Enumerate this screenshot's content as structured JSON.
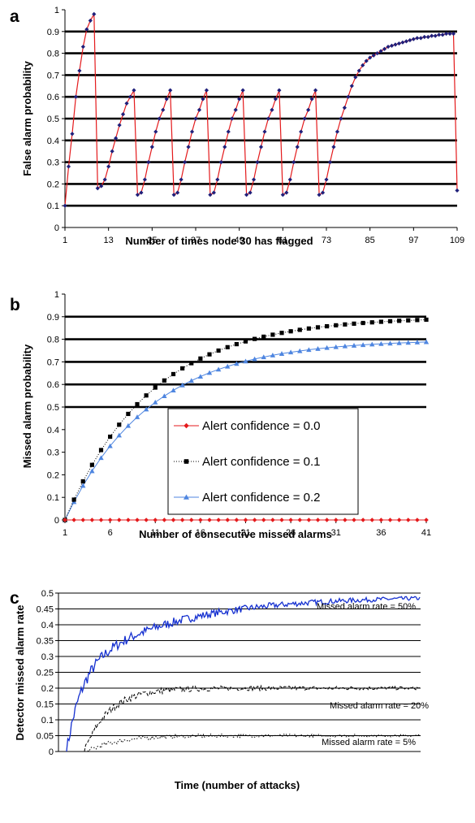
{
  "chart_data": [
    {
      "panel": "a",
      "type": "line",
      "ylabel": "False alarm probability",
      "xlabel": "Number of times node 30 has flagged",
      "ylim": [
        0,
        1
      ],
      "yticks": [
        "0",
        "0.1",
        "0.2",
        "0.3",
        "0.4",
        "0.5",
        "0.6",
        "0.7",
        "0.8",
        "0.9",
        "1"
      ],
      "xticks": [
        "1",
        "13",
        "25",
        "37",
        "49",
        "61",
        "73",
        "85",
        "97",
        "109"
      ],
      "xlim": [
        1,
        109
      ],
      "grid": "horizontal",
      "colors": {
        "line": "#e41a1c",
        "marker": "#1f1f7a"
      },
      "series": [
        {
          "x": [
            1,
            2,
            3,
            4,
            5,
            6,
            7,
            8,
            9,
            10,
            11,
            12,
            13,
            14,
            15,
            16,
            17,
            18,
            19,
            20,
            21,
            22,
            23,
            24,
            25,
            26,
            27,
            28,
            29,
            30,
            31,
            32,
            33,
            34,
            35,
            36,
            37,
            38,
            39,
            40,
            41,
            42,
            43,
            44,
            45,
            46,
            47,
            48,
            49,
            50,
            51,
            52,
            53,
            54,
            55,
            56,
            57,
            58,
            59,
            60,
            61,
            62,
            63,
            64,
            65,
            66,
            67,
            68,
            69,
            70,
            71,
            72,
            73,
            74,
            75,
            76,
            77,
            78,
            79,
            80,
            81,
            82,
            83,
            84,
            85,
            86,
            87,
            88,
            89,
            90,
            91,
            92,
            93,
            94,
            95,
            96,
            97,
            98,
            99,
            100,
            101,
            102,
            103,
            104,
            105,
            106,
            107,
            108,
            109
          ],
          "y": [
            0.1,
            0.28,
            0.43,
            0.6,
            0.72,
            0.83,
            0.91,
            0.95,
            0.98,
            0.18,
            0.19,
            0.22,
            0.28,
            0.35,
            0.41,
            0.47,
            0.52,
            0.57,
            0.6,
            0.63,
            0.15,
            0.16,
            0.22,
            0.3,
            0.37,
            0.44,
            0.5,
            0.54,
            0.59,
            0.63,
            0.15,
            0.16,
            0.22,
            0.3,
            0.37,
            0.44,
            0.5,
            0.54,
            0.59,
            0.63,
            0.15,
            0.16,
            0.22,
            0.3,
            0.37,
            0.44,
            0.5,
            0.54,
            0.59,
            0.63,
            0.15,
            0.16,
            0.22,
            0.3,
            0.37,
            0.44,
            0.5,
            0.54,
            0.59,
            0.63,
            0.15,
            0.16,
            0.22,
            0.3,
            0.37,
            0.44,
            0.5,
            0.54,
            0.59,
            0.63,
            0.15,
            0.16,
            0.22,
            0.3,
            0.37,
            0.44,
            0.5,
            0.55,
            0.6,
            0.65,
            0.69,
            0.72,
            0.745,
            0.765,
            0.78,
            0.79,
            0.8,
            0.81,
            0.82,
            0.83,
            0.835,
            0.84,
            0.845,
            0.85,
            0.855,
            0.86,
            0.865,
            0.87,
            0.87,
            0.875,
            0.875,
            0.88,
            0.88,
            0.885,
            0.885,
            0.89,
            0.89,
            0.89,
            0.17
          ]
        }
      ]
    },
    {
      "panel": "b",
      "type": "line",
      "ylabel": "Missed alarm probability",
      "xlabel": "Number of consecutive missed alarms",
      "ylim": [
        0,
        1
      ],
      "yticks": [
        "0",
        "0.1",
        "0.2",
        "0.3",
        "0.4",
        "0.5",
        "0.6",
        "0.7",
        "0.8",
        "0.9",
        "1"
      ],
      "xticks": [
        "1",
        "6",
        "11",
        "16",
        "21",
        "26",
        "31",
        "36",
        "41"
      ],
      "xlim": [
        1,
        41
      ],
      "grid": "horizontal",
      "legend": "inside-bottom-right",
      "series": [
        {
          "name": "Alert confidence = 0.0",
          "color": "#e41a1c",
          "marker": "diamond",
          "ymax": 0.0,
          "k": 0.1
        },
        {
          "name": "Alert confidence = 0.1",
          "color": "#000000",
          "marker": "square",
          "ymax": 0.9,
          "k": 0.1
        },
        {
          "name": "Alert confidence = 0.2",
          "color": "#4f86e0",
          "marker": "triangle",
          "ymax": 0.8,
          "k": 0.1
        }
      ]
    },
    {
      "panel": "c",
      "type": "line",
      "ylabel": "Detector missed alarm rate",
      "xlabel": "Time (number of attacks)",
      "ylim": [
        0,
        0.5
      ],
      "yticks": [
        "0",
        "0.05",
        "0.1",
        "0.15",
        "0.2",
        "0.25",
        "0.3",
        "0.35",
        "0.4",
        "0.45",
        "0.5"
      ],
      "grid": "horizontal",
      "series": [
        {
          "name": "Missed alarm rate = 50%",
          "color": "#1530d0",
          "style": "solid",
          "target": 0.49
        },
        {
          "name": "Missed alarm rate = 20%",
          "color": "#000000",
          "style": "dashed",
          "target": 0.2
        },
        {
          "name": "Missed alarm rate = 5%",
          "color": "#000000",
          "style": "dotted",
          "target": 0.05
        }
      ]
    }
  ]
}
